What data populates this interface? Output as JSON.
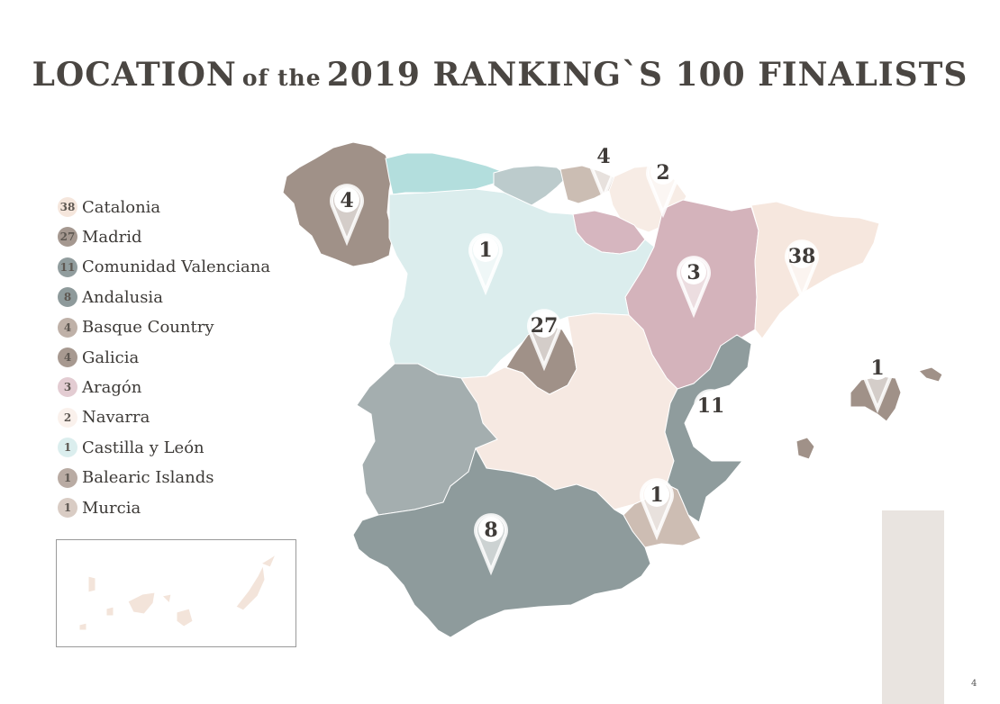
{
  "title": {
    "part1": "LOCATION",
    "part2": "of the",
    "part3": "2019 RANKING`S 100 FINALISTS"
  },
  "legend": [
    {
      "count": "38",
      "label": "Catalonia",
      "color": "#f5e6dc"
    },
    {
      "count": "27",
      "label": "Madrid",
      "color": "#a59890"
    },
    {
      "count": "11",
      "label": "Comunidad Valenciana",
      "color": "#919d9e"
    },
    {
      "count": "8",
      "label": "Andalusia",
      "color": "#8e9a9b"
    },
    {
      "count": "4",
      "label": "Basque Country",
      "color": "#bfb1a8"
    },
    {
      "count": "4",
      "label": "Galicia",
      "color": "#a79990"
    },
    {
      "count": "3",
      "label": "Aragón",
      "color": "#e3ccd2"
    },
    {
      "count": "2",
      "label": "Navarra",
      "color": "#faf1ec"
    },
    {
      "count": "1",
      "label": "Castilla y León",
      "color": "#dbeeee"
    },
    {
      "count": "1",
      "label": "Balearic Islands",
      "color": "#b9aba3"
    },
    {
      "count": "1",
      "label": "Murcia",
      "color": "#d9ccc4"
    }
  ],
  "regions": [
    {
      "name": "Galicia",
      "color": "#a09188"
    },
    {
      "name": "Asturias",
      "color": "#b3dedd"
    },
    {
      "name": "Cantabria",
      "color": "#bccbcc"
    },
    {
      "name": "Basque Country",
      "color": "#cbbdb3"
    },
    {
      "name": "Navarra",
      "color": "#f7ece5"
    },
    {
      "name": "La Rioja",
      "color": "#d6b6bf"
    },
    {
      "name": "Aragón",
      "color": "#d4b3bb"
    },
    {
      "name": "Catalonia",
      "color": "#f6e7de"
    },
    {
      "name": "Castilla y León",
      "color": "#dbeded"
    },
    {
      "name": "Madrid",
      "color": "#a09188"
    },
    {
      "name": "Castilla-La Mancha",
      "color": "#f6e9e2"
    },
    {
      "name": "Extremadura",
      "color": "#a4aeaf"
    },
    {
      "name": "Comunidad Valenciana",
      "color": "#8f9c9d"
    },
    {
      "name": "Murcia",
      "color": "#cdbdb3"
    },
    {
      "name": "Andalusia",
      "color": "#8e9b9c"
    },
    {
      "name": "Balearic Islands",
      "color": "#a09188"
    },
    {
      "name": "Canary Islands",
      "color": "#f3e4da"
    }
  ],
  "pins": [
    {
      "region": "Galicia",
      "label": "4"
    },
    {
      "region": "Basque Country",
      "label": "4"
    },
    {
      "region": "Navarra",
      "label": "2"
    },
    {
      "region": "Castilla y León",
      "label": "1"
    },
    {
      "region": "Catalonia",
      "label": "38"
    },
    {
      "region": "Aragón",
      "label": "3"
    },
    {
      "region": "Madrid",
      "label": "27"
    },
    {
      "region": "Comunidad Valenciana",
      "label": "11"
    },
    {
      "region": "Balearic Islands",
      "label": "1"
    },
    {
      "region": "Murcia",
      "label": "1"
    },
    {
      "region": "Andalusia",
      "label": "8"
    }
  ],
  "page_number": "4"
}
